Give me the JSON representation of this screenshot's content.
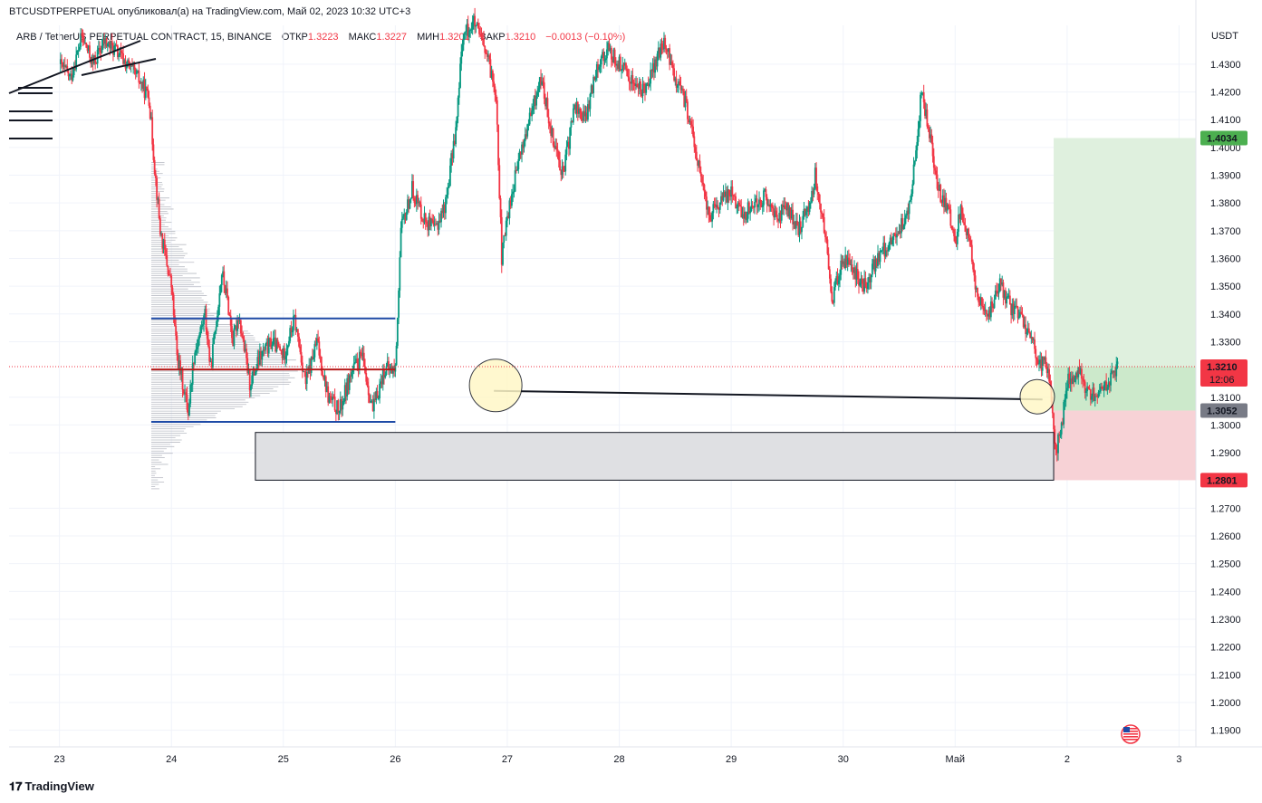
{
  "header": {
    "author_line": "BTCUSDTPERPETUAL опубликовал(а) на TradingView.com, Май 02, 2023 10:32 UTC+3",
    "symbol": "ARB / TetherUS PERPETUAL CONTRACT, 15, BINANCE",
    "open_label": "ОТКР",
    "open_value": "1.3223",
    "high_label": "МАКС",
    "high_value": "1.3227",
    "low_label": "МИН",
    "low_value": "1.3201",
    "close_label": "ЗАКР",
    "close_value": "1.3210",
    "change_value": "−0.0013 (−0.10%)"
  },
  "footer": {
    "brand": "TradingView",
    "brand_icon": "tradingview-logo-icon"
  },
  "colors": {
    "up": "#089981",
    "down": "#f23645",
    "profit_zone": "#dff0de",
    "loss_zone": "#f7d2d6",
    "box_fill": "#dfe0e3",
    "blue_line": "#1e4aa6",
    "red_line": "#b71c1c",
    "circle_fill": "#fff7c7"
  },
  "chart_data": {
    "type": "candlestick",
    "symbol": "ARB / TetherUS PERPETUAL CONTRACT",
    "timeframe": "15",
    "exchange": "BINANCE",
    "currency_label": "USDT",
    "y_ticks": [
      "1.4300",
      "1.4200",
      "1.4100",
      "1.4000",
      "1.3900",
      "1.3800",
      "1.3700",
      "1.3600",
      "1.3500",
      "1.3400",
      "1.3300",
      "1.3100",
      "1.3000",
      "1.2900",
      "1.2700",
      "1.2600",
      "1.2500",
      "1.2400",
      "1.2300",
      "1.2200",
      "1.2100",
      "1.2000",
      "1.1900"
    ],
    "ylim": [
      1.184,
      1.444
    ],
    "x_ticks": [
      "23",
      "24",
      "25",
      "26",
      "27",
      "28",
      "29",
      "30",
      "Май",
      "2",
      "3"
    ],
    "price_labels": {
      "current_price": "1.3210",
      "countdown": "12:06",
      "take_profit": "1.4034",
      "entry": "1.3052",
      "stop_loss": "1.2801"
    },
    "position": {
      "entry": 1.3052,
      "take_profit": 1.4034,
      "stop_loss": 1.2801
    },
    "value_area": {
      "high": 1.3384,
      "low": 1.3011,
      "poc": 1.32
    },
    "demand_zone": {
      "top": 1.2973,
      "bottom": 1.2801
    },
    "trendline": {
      "from_price": 1.3123,
      "to_price": 1.3092
    },
    "path": [
      [
        23.0,
        1.43
      ],
      [
        23.1,
        1.425
      ],
      [
        23.2,
        1.44
      ],
      [
        23.3,
        1.43
      ],
      [
        23.4,
        1.438
      ],
      [
        23.5,
        1.435
      ],
      [
        23.6,
        1.43
      ],
      [
        23.7,
        1.425
      ],
      [
        23.8,
        1.418
      ],
      [
        23.85,
        1.393
      ],
      [
        23.9,
        1.37
      ],
      [
        24.0,
        1.35
      ],
      [
        24.05,
        1.325
      ],
      [
        24.1,
        1.315
      ],
      [
        24.15,
        1.305
      ],
      [
        24.2,
        1.325
      ],
      [
        24.3,
        1.34
      ],
      [
        24.35,
        1.32
      ],
      [
        24.45,
        1.355
      ],
      [
        24.5,
        1.345
      ],
      [
        24.55,
        1.33
      ],
      [
        24.6,
        1.34
      ],
      [
        24.7,
        1.315
      ],
      [
        24.8,
        1.325
      ],
      [
        24.9,
        1.33
      ],
      [
        25.0,
        1.325
      ],
      [
        25.1,
        1.338
      ],
      [
        25.2,
        1.315
      ],
      [
        25.3,
        1.33
      ],
      [
        25.4,
        1.31
      ],
      [
        25.5,
        1.305
      ],
      [
        25.6,
        1.318
      ],
      [
        25.7,
        1.325
      ],
      [
        25.8,
        1.305
      ],
      [
        25.9,
        1.32
      ],
      [
        26.0,
        1.32
      ],
      [
        26.05,
        1.37
      ],
      [
        26.15,
        1.385
      ],
      [
        26.25,
        1.375
      ],
      [
        26.35,
        1.37
      ],
      [
        26.45,
        1.38
      ],
      [
        26.55,
        1.41
      ],
      [
        26.6,
        1.44
      ],
      [
        26.7,
        1.445
      ],
      [
        26.8,
        1.435
      ],
      [
        26.9,
        1.42
      ],
      [
        26.95,
        1.36
      ],
      [
        27.0,
        1.375
      ],
      [
        27.1,
        1.395
      ],
      [
        27.2,
        1.41
      ],
      [
        27.3,
        1.425
      ],
      [
        27.4,
        1.405
      ],
      [
        27.5,
        1.39
      ],
      [
        27.6,
        1.415
      ],
      [
        27.7,
        1.41
      ],
      [
        27.8,
        1.43
      ],
      [
        27.9,
        1.435
      ],
      [
        28.0,
        1.43
      ],
      [
        28.1,
        1.425
      ],
      [
        28.2,
        1.42
      ],
      [
        28.3,
        1.428
      ],
      [
        28.4,
        1.438
      ],
      [
        28.5,
        1.425
      ],
      [
        28.6,
        1.415
      ],
      [
        28.7,
        1.395
      ],
      [
        28.8,
        1.375
      ],
      [
        28.9,
        1.38
      ],
      [
        29.0,
        1.385
      ],
      [
        29.1,
        1.375
      ],
      [
        29.2,
        1.38
      ],
      [
        29.3,
        1.382
      ],
      [
        29.4,
        1.375
      ],
      [
        29.5,
        1.378
      ],
      [
        29.6,
        1.37
      ],
      [
        29.7,
        1.38
      ],
      [
        29.75,
        1.39
      ],
      [
        29.85,
        1.365
      ],
      [
        29.9,
        1.345
      ],
      [
        30.0,
        1.36
      ],
      [
        30.1,
        1.355
      ],
      [
        30.2,
        1.35
      ],
      [
        30.3,
        1.36
      ],
      [
        30.4,
        1.365
      ],
      [
        30.5,
        1.37
      ],
      [
        30.6,
        1.38
      ],
      [
        30.7,
        1.42
      ],
      [
        30.75,
        1.41
      ],
      [
        30.85,
        1.385
      ],
      [
        30.95,
        1.375
      ],
      [
        31.0,
        1.365
      ],
      [
        31.05,
        1.38
      ],
      [
        31.15,
        1.36
      ],
      [
        31.2,
        1.345
      ],
      [
        31.3,
        1.34
      ],
      [
        31.4,
        1.35
      ],
      [
        31.5,
        1.342
      ],
      [
        31.6,
        1.338
      ],
      [
        31.7,
        1.33
      ],
      [
        31.75,
        1.32
      ],
      [
        31.8,
        1.325
      ],
      [
        31.85,
        1.315
      ],
      [
        31.9,
        1.29
      ],
      [
        31.95,
        1.3
      ],
      [
        32.0,
        1.315
      ],
      [
        32.1,
        1.32
      ],
      [
        32.15,
        1.315
      ],
      [
        32.25,
        1.31
      ],
      [
        32.35,
        1.315
      ],
      [
        32.45,
        1.321
      ]
    ],
    "volume_profile_range": [
      1.277,
      1.395
    ],
    "date_range": [
      22.55,
      33.15
    ]
  }
}
